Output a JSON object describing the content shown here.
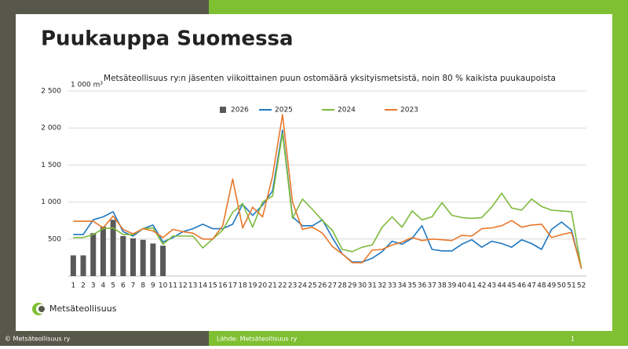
{
  "slide": {
    "title": "Puukauppa Suomessa",
    "logo": "Metsäteollisuus",
    "copyright": "© Metsäteollisuus ry",
    "source": "Lähde: Metsäteollisuus ry",
    "page": "1"
  },
  "chart_data": {
    "type": "bar",
    "title": "Metsäteollisuus ry:n jäsenten viikoittainen puun ostomäärä yksityismetsistä, noin 80 % kaikista puukaupoista",
    "y_label": "1 000 m³",
    "legend": "top",
    "categories": [
      "1",
      "2",
      "3",
      "4",
      "5",
      "6",
      "7",
      "8",
      "9",
      "10",
      "11",
      "12",
      "13",
      "14",
      "15",
      "16",
      "17",
      "18",
      "19",
      "20",
      "21",
      "22",
      "23",
      "24",
      "25",
      "26",
      "27",
      "28",
      "29",
      "30",
      "31",
      "32",
      "33",
      "34",
      "35",
      "36",
      "37",
      "38",
      "39",
      "40",
      "41",
      "42",
      "43",
      "44",
      "45",
      "46",
      "47",
      "48",
      "49",
      "50",
      "51",
      "52"
    ],
    "ylim": [
      0,
      2500
    ],
    "yticks": [
      500,
      {
        "value": 1000,
        "label": "1 000"
      },
      {
        "value": 1500,
        "label": "1 500"
      },
      {
        "value": 2000,
        "label": "2 000"
      },
      {
        "value": 2500,
        "label": "2 500"
      }
    ],
    "grid": true,
    "series": [
      {
        "name": "2026",
        "type": "bar",
        "color": "#595959",
        "values": [
          280,
          280,
          580,
          670,
          760,
          540,
          510,
          490,
          440,
          410,
          null,
          null,
          null,
          null,
          null,
          null,
          null,
          null,
          null,
          null,
          null,
          null,
          null,
          null,
          null,
          null,
          null,
          null,
          null,
          null,
          null,
          null,
          null,
          null,
          null,
          null,
          null,
          null,
          null,
          null,
          null,
          null,
          null,
          null,
          null,
          null,
          null,
          null,
          null,
          null,
          null,
          null
        ]
      },
      {
        "name": "2025",
        "type": "line",
        "color": "#1f78c1",
        "values": [
          560,
          560,
          760,
          800,
          870,
          600,
          540,
          640,
          690,
          460,
          520,
          600,
          640,
          700,
          640,
          640,
          700,
          970,
          820,
          960,
          1150,
          1970,
          800,
          680,
          680,
          760,
          520,
          300,
          190,
          190,
          240,
          330,
          470,
          430,
          510,
          680,
          360,
          340,
          340,
          430,
          490,
          390,
          470,
          440,
          390,
          490,
          440,
          360,
          630,
          730,
          620,
          100
        ]
      },
      {
        "name": "2024",
        "type": "line",
        "color": "#7dba3c",
        "values": [
          520,
          520,
          560,
          640,
          650,
          560,
          560,
          640,
          650,
          430,
          540,
          540,
          540,
          380,
          500,
          620,
          860,
          980,
          660,
          1000,
          1080,
          1930,
          780,
          1040,
          900,
          750,
          620,
          360,
          330,
          390,
          420,
          660,
          800,
          660,
          880,
          760,
          800,
          990,
          820,
          790,
          780,
          790,
          930,
          1120,
          920,
          890,
          1040,
          940,
          890,
          880,
          870,
          100
        ]
      },
      {
        "name": "2023",
        "type": "line",
        "color": "#e8772a",
        "values": [
          740,
          740,
          740,
          650,
          810,
          630,
          570,
          640,
          610,
          520,
          630,
          600,
          580,
          500,
          500,
          680,
          1310,
          650,
          930,
          800,
          1350,
          2180,
          1000,
          630,
          660,
          580,
          400,
          300,
          180,
          180,
          350,
          360,
          420,
          460,
          520,
          480,
          500,
          490,
          480,
          550,
          540,
          640,
          650,
          680,
          750,
          660,
          690,
          700,
          520,
          560,
          590,
          100
        ]
      }
    ]
  }
}
